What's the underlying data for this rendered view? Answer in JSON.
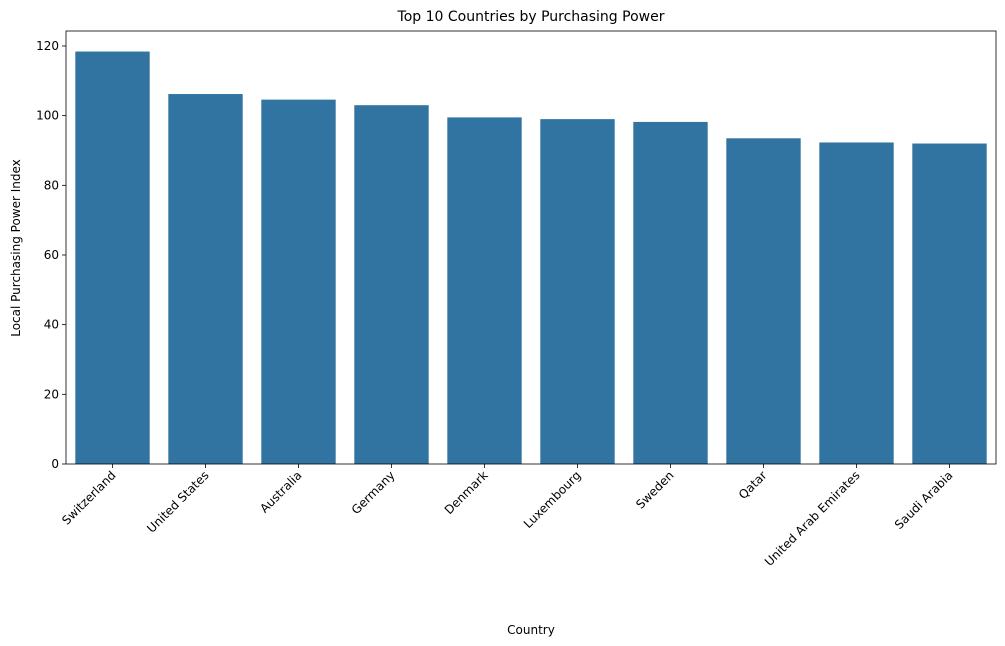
{
  "chart_data": {
    "type": "bar",
    "title": "Top 10 Countries by Purchasing Power",
    "xlabel": "Country",
    "ylabel": "Local Purchasing Power Index",
    "categories": [
      "Switzerland",
      "United States",
      "Australia",
      "Germany",
      "Denmark",
      "Luxembourg",
      "Sweden",
      "Qatar",
      "United Arab Emirates",
      "Saudi Arabia"
    ],
    "values": [
      118.4,
      106.2,
      104.6,
      103.0,
      99.5,
      99.0,
      98.2,
      93.5,
      92.3,
      92.0
    ],
    "ylim": [
      0,
      124.3
    ],
    "yticks": [
      0,
      20,
      40,
      60,
      80,
      100,
      120
    ],
    "grid": false,
    "legend": "none",
    "bar_color": "#3274a1"
  }
}
